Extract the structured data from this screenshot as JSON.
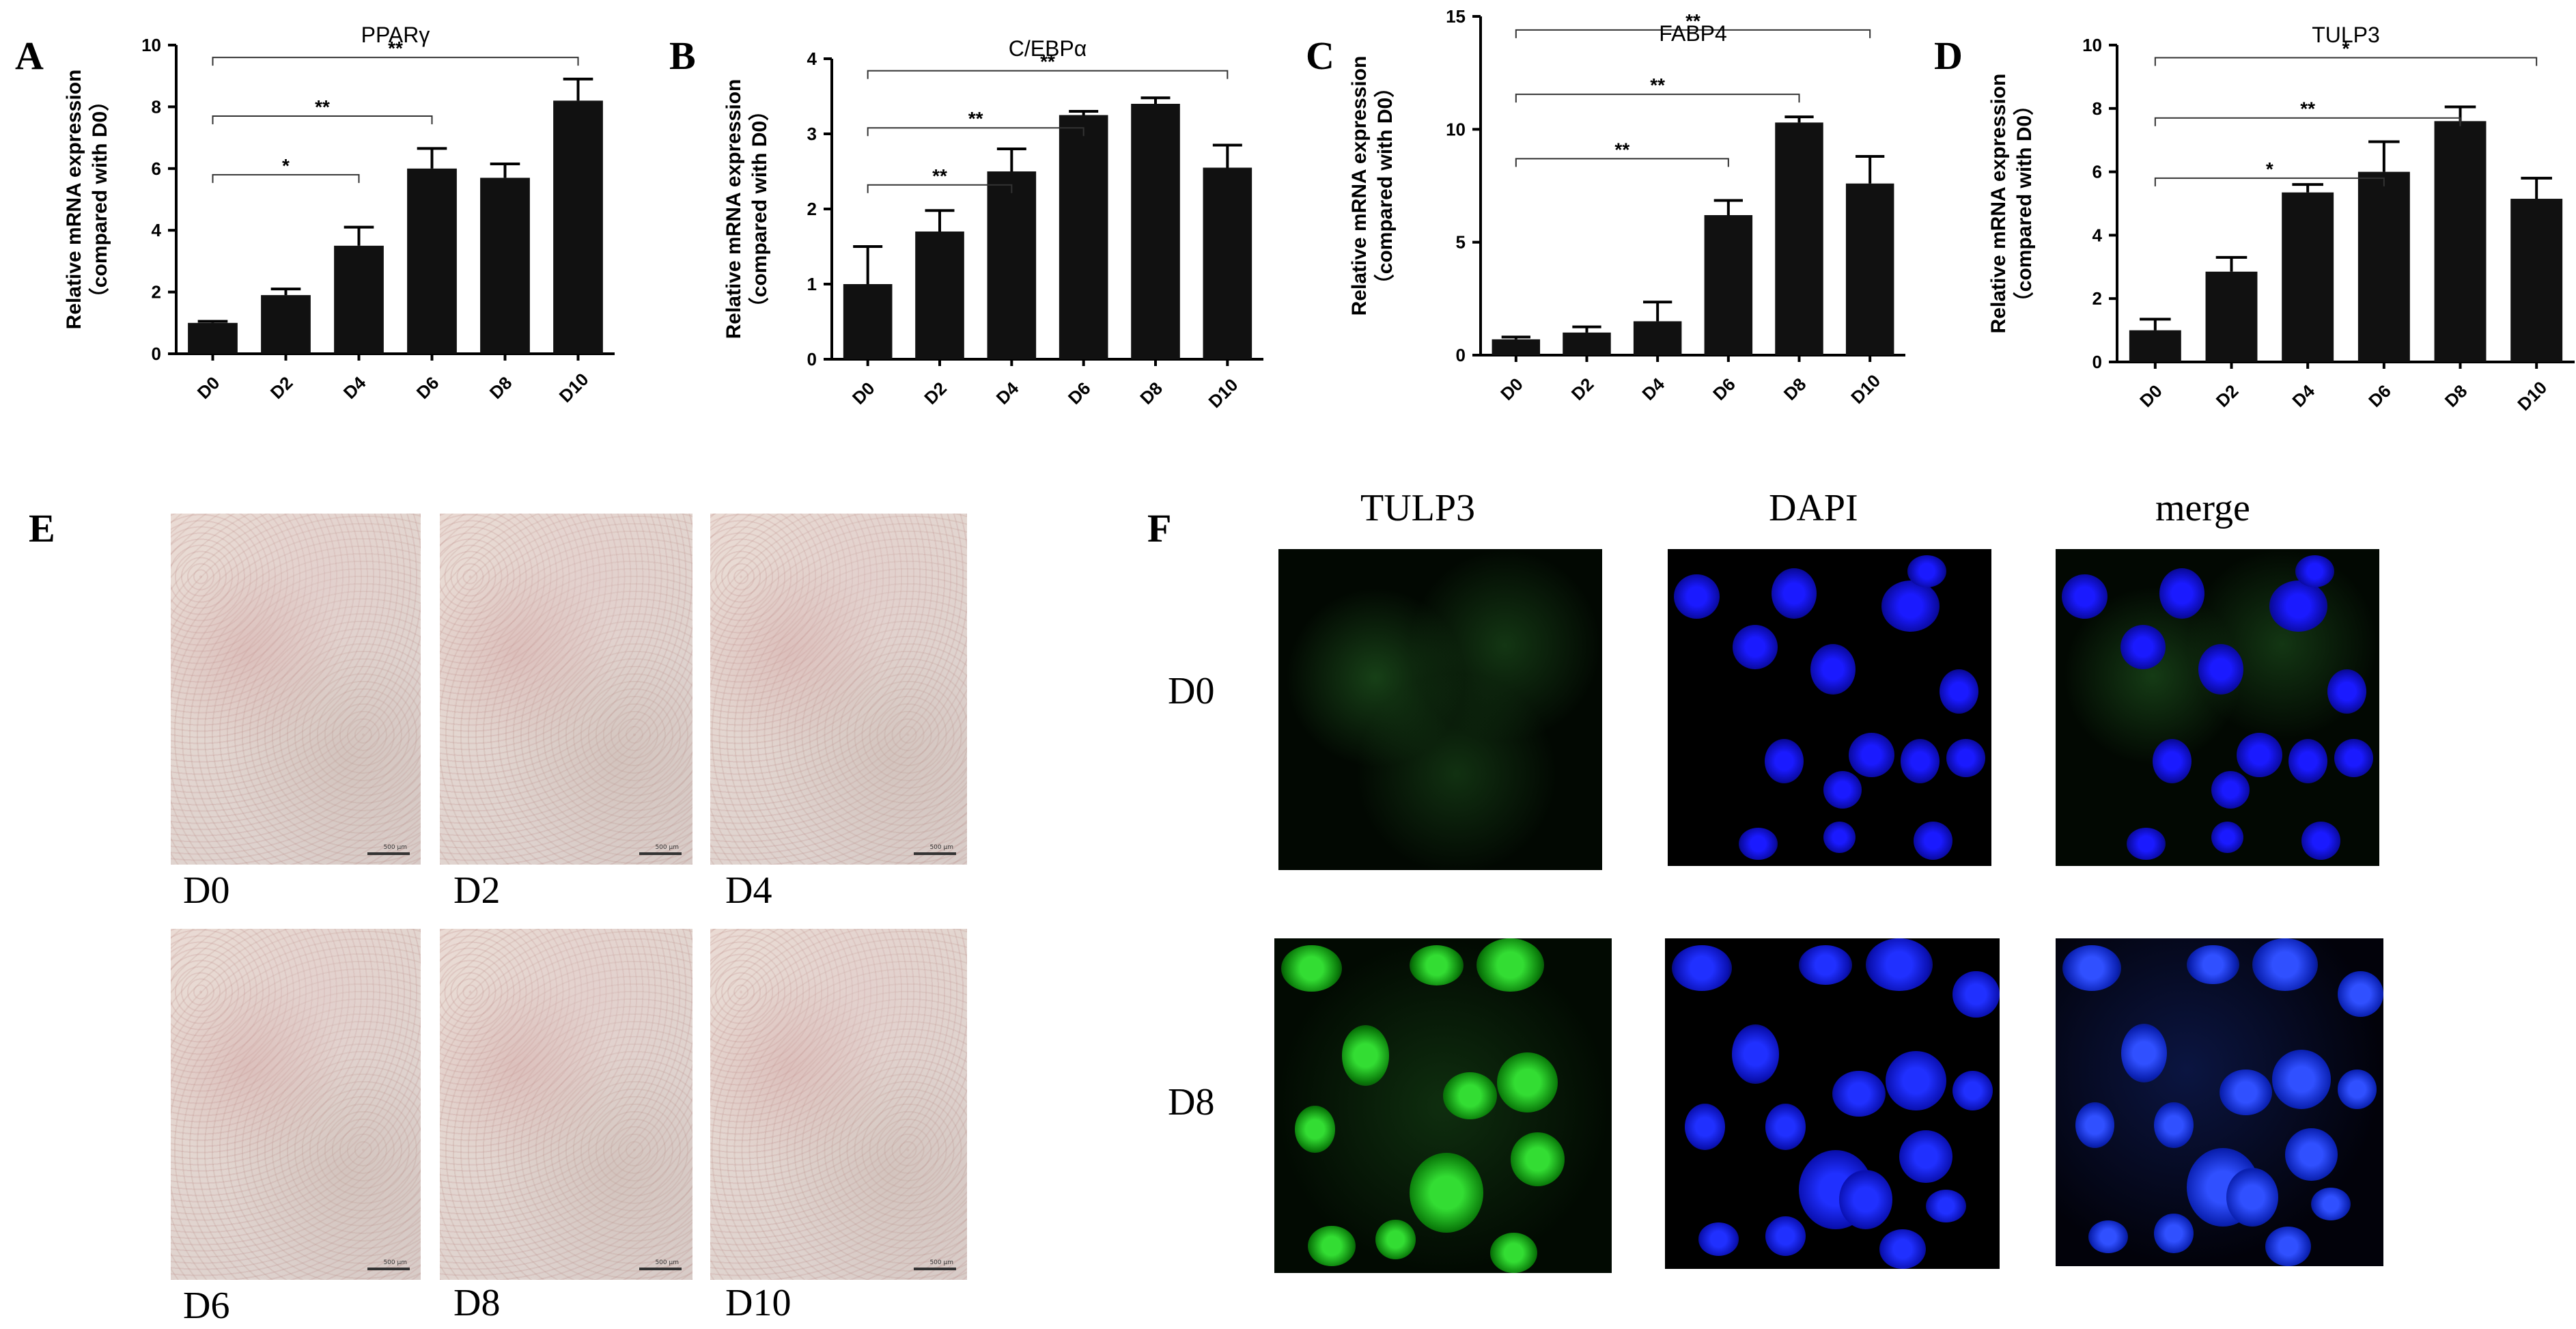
{
  "panels": {
    "A": "A",
    "B": "B",
    "C": "C",
    "D": "D",
    "E": "E",
    "F": "F"
  },
  "chart_data": [
    {
      "type": "bar",
      "title": "PPARγ",
      "ylabel": "Relative mRNA expression",
      "ylabel2": "（compared with D0）",
      "categories": [
        "D0",
        "D2",
        "D4",
        "D6",
        "D8",
        "D10"
      ],
      "values": [
        1.0,
        1.9,
        3.5,
        6.0,
        5.7,
        8.2
      ],
      "errors": [
        0.05,
        0.2,
        0.6,
        0.65,
        0.45,
        0.7
      ],
      "ylim": [
        0,
        10
      ],
      "yticks": [
        "0",
        "2",
        "4",
        "6",
        "8",
        "10"
      ],
      "significance": [
        {
          "from": 0,
          "to": 5,
          "label": "**"
        },
        {
          "from": 0,
          "to": 3,
          "label": "**"
        },
        {
          "from": 0,
          "to": 2,
          "label": "*"
        }
      ]
    },
    {
      "type": "bar",
      "title": "C/EBPα",
      "ylabel": "Relative mRNA expression",
      "ylabel2": "（compared with D0）",
      "categories": [
        "D0",
        "D2",
        "D4",
        "D6",
        "D8",
        "D10"
      ],
      "values": [
        1.0,
        1.7,
        2.5,
        3.25,
        3.4,
        2.55
      ],
      "errors": [
        0.5,
        0.28,
        0.3,
        0.05,
        0.08,
        0.3
      ],
      "ylim": [
        0,
        4
      ],
      "yticks": [
        "0",
        "1",
        "2",
        "3",
        "4"
      ],
      "significance": [
        {
          "from": 0,
          "to": 5,
          "label": "**"
        },
        {
          "from": 0,
          "to": 3,
          "label": "**"
        },
        {
          "from": 0,
          "to": 2,
          "label": "**"
        }
      ]
    },
    {
      "type": "bar",
      "title": "FABP4",
      "ylabel": "Relative mRNA expression",
      "ylabel2": "（compared with D0）",
      "categories": [
        "D0",
        "D2",
        "D4",
        "D6",
        "D8",
        "D10"
      ],
      "values": [
        0.7,
        1.0,
        1.5,
        6.2,
        10.3,
        7.6
      ],
      "errors": [
        0.1,
        0.25,
        0.85,
        0.65,
        0.25,
        1.2
      ],
      "ylim": [
        0,
        15
      ],
      "yticks": [
        "0",
        "5",
        "10",
        "15"
      ],
      "significance": [
        {
          "from": 0,
          "to": 5,
          "label": "**"
        },
        {
          "from": 0,
          "to": 4,
          "label": "**"
        },
        {
          "from": 0,
          "to": 3,
          "label": "**"
        }
      ]
    },
    {
      "type": "bar",
      "title": "TULP3",
      "ylabel": "Relative mRNA expression",
      "ylabel2": "（compared with D0）",
      "categories": [
        "D0",
        "D2",
        "D4",
        "D6",
        "D8",
        "D10"
      ],
      "values": [
        1.0,
        2.85,
        5.35,
        6.0,
        7.6,
        5.15
      ],
      "errors": [
        0.35,
        0.45,
        0.25,
        0.95,
        0.45,
        0.65
      ],
      "ylim": [
        0,
        10
      ],
      "yticks": [
        "0",
        "2",
        "4",
        "6",
        "8",
        "10"
      ],
      "significance": [
        {
          "from": 0,
          "to": 5,
          "label": "*"
        },
        {
          "from": 0,
          "to": 4,
          "label": "**"
        },
        {
          "from": 0,
          "to": 3,
          "label": "*"
        }
      ]
    }
  ],
  "panel_e": {
    "labels": [
      "D0",
      "D2",
      "D4",
      "D6",
      "D8",
      "D10"
    ],
    "scale_text": "500 μm"
  },
  "panel_f": {
    "columns": [
      "TULP3",
      "DAPI",
      "merge"
    ],
    "rows": [
      "D0",
      "D8"
    ]
  },
  "colors": {
    "bar": "#111111",
    "dapi": "#1a1aff",
    "tulp3": "#22aa22"
  }
}
